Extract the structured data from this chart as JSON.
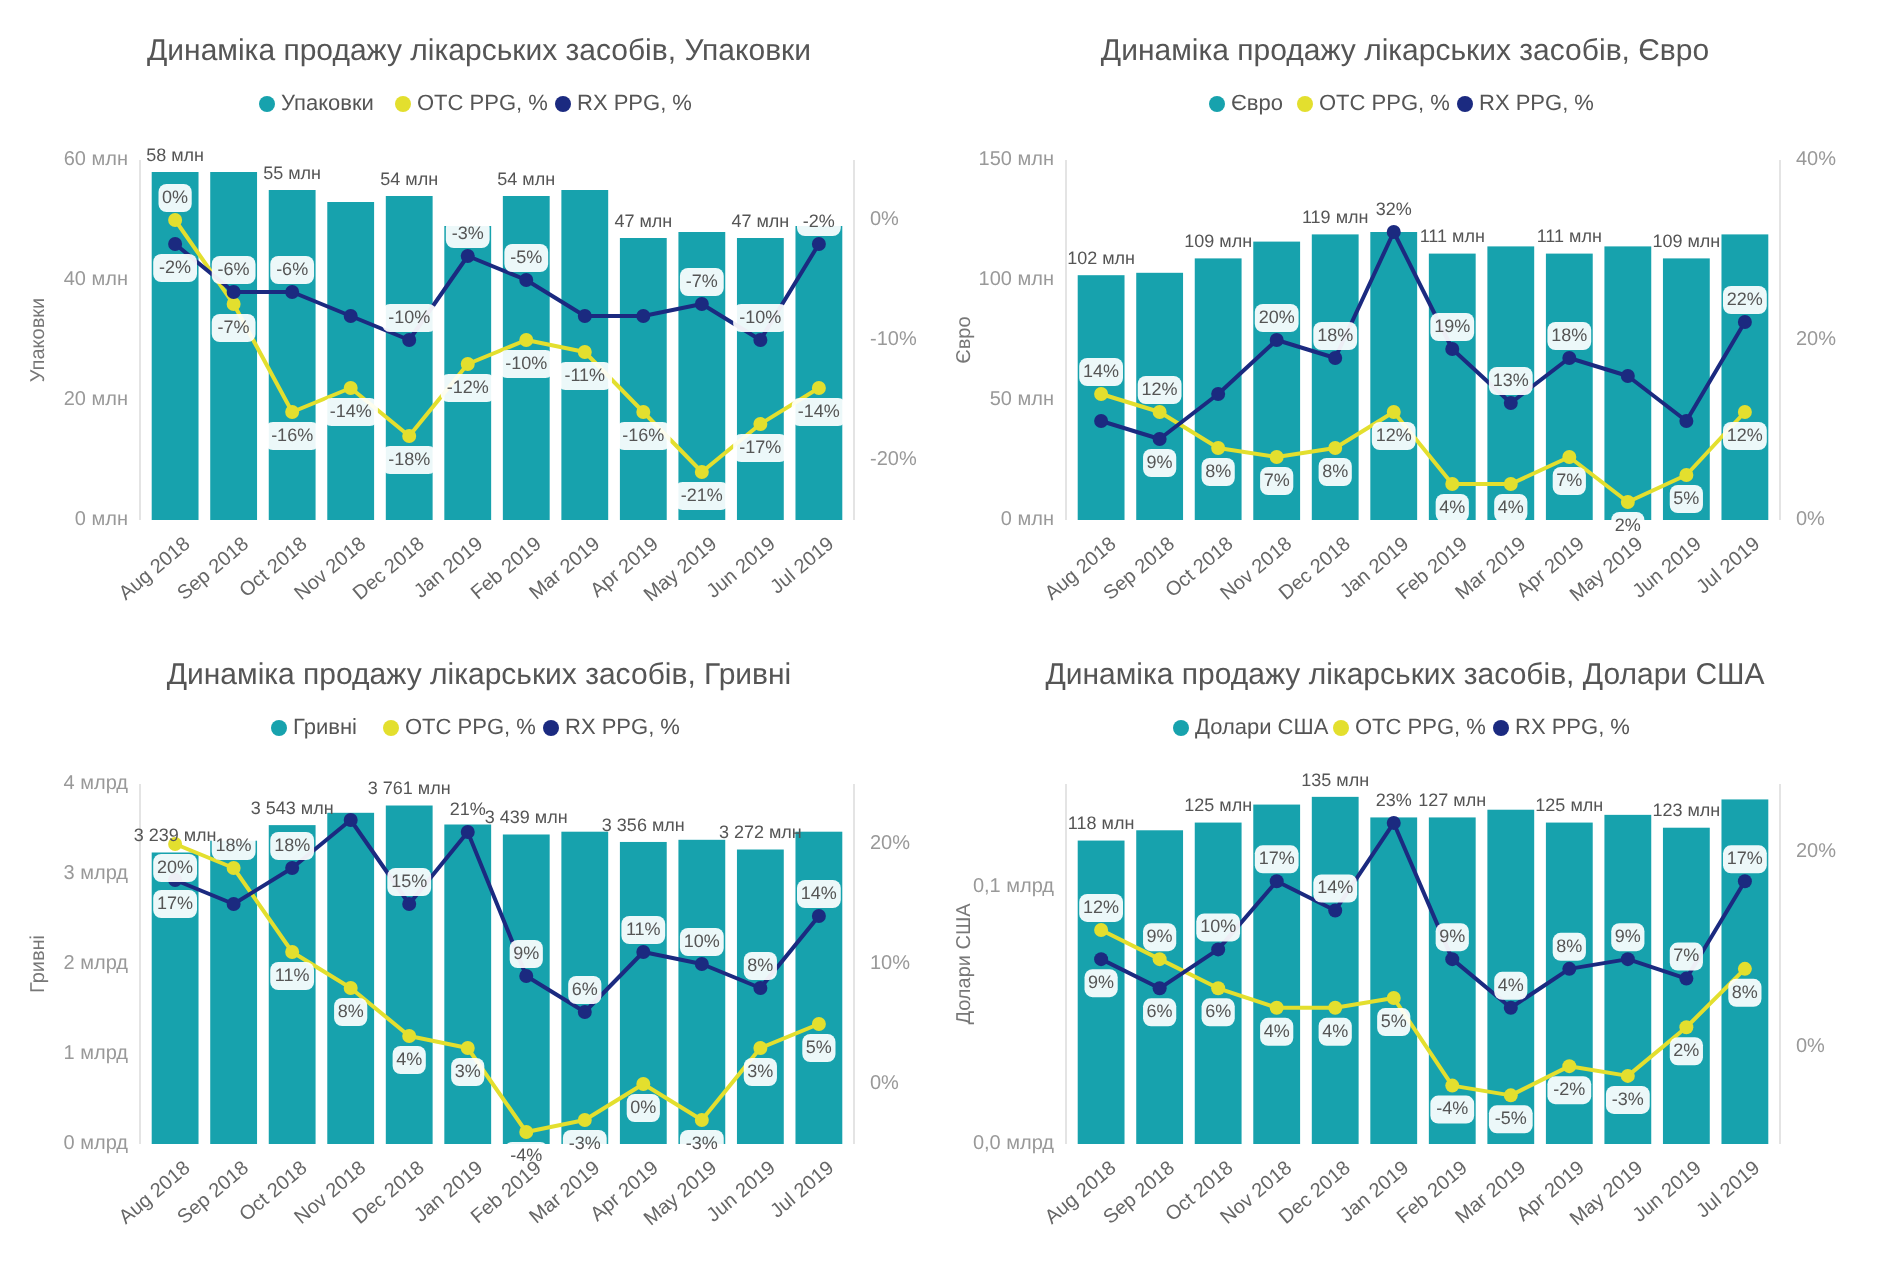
{
  "chart_data": [
    {
      "type": "bar",
      "title": "Динаміка продажу лікарських засобів, Упаковки",
      "ylabel": "Упаковки",
      "legend": "top",
      "marker": "circle",
      "categories": [
        "Aug 2018",
        "Sep 2018",
        "Oct 2018",
        "Nov 2018",
        "Dec 2018",
        "Jan 2019",
        "Feb 2019",
        "Mar 2019",
        "Apr 2019",
        "May 2019",
        "Jun 2019",
        "Jul 2019"
      ],
      "ylim": [
        0,
        60
      ],
      "yticks": [
        {
          "value": 0,
          "label": "0 млн"
        },
        {
          "value": 20,
          "label": "20 млн"
        },
        {
          "value": 40,
          "label": "40 млн"
        },
        {
          "value": 60,
          "label": "60 млн"
        }
      ],
      "y2lim": [
        -25,
        5
      ],
      "y2ticks": [
        {
          "value": -20,
          "label": "-20%"
        },
        {
          "value": -10,
          "label": "-10%"
        },
        {
          "value": 0,
          "label": "0%"
        }
      ],
      "series": [
        {
          "name": "Упаковки",
          "color": "#17a2ad",
          "values": [
            58,
            58,
            55,
            53,
            54,
            49,
            54,
            55,
            47,
            48,
            47,
            49
          ],
          "value_labels": [
            "58 млн",
            null,
            "55 млн",
            null,
            "54 млн",
            null,
            "54 млн",
            null,
            "47 млн",
            null,
            "47 млн",
            null
          ]
        },
        {
          "name": "OTC PPG, %",
          "type": "line",
          "axis": "y2",
          "color": "#e3df2e",
          "values": [
            0,
            -7,
            -16,
            -14,
            -18,
            -12,
            -10,
            -11,
            -16,
            -21,
            -17,
            -14
          ],
          "value_labels": [
            "0%",
            "-7%",
            "-16%",
            "-14%",
            "-18%",
            "-12%",
            "-10%",
            "-11%",
            "-16%",
            "-21%",
            "-17%",
            "-14%"
          ]
        },
        {
          "name": "RX PPG, %",
          "type": "line",
          "axis": "y2",
          "color": "#1b2a80",
          "values": [
            -2,
            -6,
            -6,
            -8,
            -10,
            -3,
            -5,
            -8,
            -8,
            -7,
            -10,
            -2
          ],
          "value_labels": [
            "-2%",
            "-6%",
            "-6%",
            null,
            "-10%",
            "-3%",
            "-5%",
            null,
            null,
            "-7%",
            "-10%",
            "-2%"
          ]
        }
      ]
    },
    {
      "type": "bar",
      "title": "Динаміка продажу лікарських засобів, Євро",
      "ylabel": "Євро",
      "legend": "top",
      "marker": "circle",
      "categories": [
        "Aug 2018",
        "Sep 2018",
        "Oct 2018",
        "Nov 2018",
        "Dec 2018",
        "Jan 2019",
        "Feb 2019",
        "Mar 2019",
        "Apr 2019",
        "May 2019",
        "Jun 2019",
        "Jul 2019"
      ],
      "ylim": [
        0,
        150
      ],
      "yticks": [
        {
          "value": 0,
          "label": "0 млн"
        },
        {
          "value": 50,
          "label": "50 млн"
        },
        {
          "value": 100,
          "label": "100 млн"
        },
        {
          "value": 150,
          "label": "150 млн"
        }
      ],
      "y2lim": [
        0,
        40
      ],
      "y2ticks": [
        {
          "value": 0,
          "label": "0%"
        },
        {
          "value": 20,
          "label": "20%"
        },
        {
          "value": 40,
          "label": "40%"
        }
      ],
      "series": [
        {
          "name": "Євро",
          "color": "#17a2ad",
          "values": [
            102,
            103,
            109,
            116,
            119,
            120,
            111,
            114,
            111,
            114,
            109,
            119
          ],
          "value_labels": [
            "102 млн",
            null,
            "109 млн",
            null,
            "119 млн",
            null,
            "111 млн",
            null,
            "111 млн",
            null,
            "109 млн",
            null
          ]
        },
        {
          "name": "OTC PPG, %",
          "type": "line",
          "axis": "y2",
          "color": "#e3df2e",
          "values": [
            14,
            12,
            8,
            7,
            8,
            12,
            4,
            4,
            7,
            2,
            5,
            12
          ],
          "value_labels": [
            "14%",
            "12%",
            "8%",
            "7%",
            "8%",
            "12%",
            "4%",
            "4%",
            "7%",
            "2%",
            "5%",
            "12%"
          ]
        },
        {
          "name": "RX PPG, %",
          "type": "line",
          "axis": "y2",
          "color": "#1b2a80",
          "values": [
            11,
            9,
            14,
            20,
            18,
            32,
            19,
            13,
            18,
            16,
            11,
            22
          ],
          "value_labels": [
            null,
            "9%",
            null,
            "20%",
            "18%",
            "32%",
            "19%",
            "13%",
            "18%",
            null,
            null,
            "22%"
          ]
        }
      ]
    },
    {
      "type": "bar",
      "title": "Динаміка продажу лікарських засобів, Гривні",
      "ylabel": "Гривні",
      "legend": "top",
      "marker": "circle",
      "categories": [
        "Aug 2018",
        "Sep 2018",
        "Oct 2018",
        "Nov 2018",
        "Dec 2018",
        "Jan 2019",
        "Feb 2019",
        "Mar 2019",
        "Apr 2019",
        "May 2019",
        "Jun 2019",
        "Jul 2019"
      ],
      "ylim": [
        0,
        4
      ],
      "yticks": [
        {
          "value": 0,
          "label": "0 млрд"
        },
        {
          "value": 1,
          "label": "1 млрд"
        },
        {
          "value": 2,
          "label": "2 млрд"
        },
        {
          "value": 3,
          "label": "3 млрд"
        },
        {
          "value": 4,
          "label": "4 млрд"
        }
      ],
      "annotations": [
        {
          "text": "3 239 млн",
          "x": "Aug 2018",
          "y": 3.239
        },
        {
          "text": "3 543 млн",
          "x": "Oct 2018",
          "y": 3.543
        },
        {
          "text": "3 761 млн",
          "x": "Dec 2018",
          "y": 3.761
        },
        {
          "text": "3 439 млн",
          "x": "Feb 2019",
          "y": 3.439
        },
        {
          "text": "3 356 млн",
          "x": "Apr 2019",
          "y": 3.356
        },
        {
          "text": "3 272 млн",
          "x": "Jun 2019",
          "y": 3.272
        }
      ],
      "y2lim": [
        -5,
        25
      ],
      "y2ticks": [
        {
          "value": 0,
          "label": "0%"
        },
        {
          "value": 10,
          "label": "10%"
        },
        {
          "value": 20,
          "label": "20%"
        }
      ],
      "series": [
        {
          "name": "Гривні",
          "color": "#17a2ad",
          "values": [
            3.239,
            3.37,
            3.543,
            3.68,
            3.761,
            3.55,
            3.439,
            3.47,
            3.356,
            3.38,
            3.272,
            3.47
          ]
        },
        {
          "name": "OTC PPG, %",
          "type": "line",
          "axis": "y2",
          "color": "#e3df2e",
          "values": [
            20,
            18,
            11,
            8,
            4,
            3,
            -4,
            -3,
            0,
            -3,
            3,
            5
          ],
          "value_labels": [
            "20%",
            "18%",
            "11%",
            "8%",
            "4%",
            "3%",
            "-4%",
            "-3%",
            "0%",
            "-3%",
            "3%",
            "5%"
          ]
        },
        {
          "name": "RX PPG, %",
          "type": "line",
          "axis": "y2",
          "color": "#1b2a80",
          "values": [
            17,
            15,
            18,
            22,
            15,
            21,
            9,
            6,
            11,
            10,
            8,
            14
          ],
          "value_labels": [
            "17%",
            null,
            "18%",
            null,
            "15%",
            "21%",
            "9%",
            "6%",
            "11%",
            "10%",
            "8%",
            "14%"
          ]
        }
      ]
    },
    {
      "type": "bar",
      "title": "Динаміка продажу лікарських засобів, Долари США",
      "ylabel": "Долари США",
      "legend": "top",
      "marker": "circle",
      "categories": [
        "Aug 2018",
        "Sep 2018",
        "Oct 2018",
        "Nov 2018",
        "Dec 2018",
        "Jan 2019",
        "Feb 2019",
        "Mar 2019",
        "Apr 2019",
        "May 2019",
        "Jun 2019",
        "Jul 2019"
      ],
      "ylim": [
        0,
        0.14
      ],
      "yticks": [
        {
          "value": 0,
          "label": "0,0 млрд"
        },
        {
          "value": 0.1,
          "label": "0,1 млрд"
        }
      ],
      "annotations": [
        {
          "text": "118 млн",
          "x": "Aug 2018",
          "y": 0.118
        },
        {
          "text": "125 млн",
          "x": "Oct 2018",
          "y": 0.125
        },
        {
          "text": "135 млн",
          "x": "Dec 2018",
          "y": 0.135
        },
        {
          "text": "127 млн",
          "x": "Feb 2019",
          "y": 0.127
        },
        {
          "text": "125 млн",
          "x": "Apr 2019",
          "y": 0.125
        },
        {
          "text": "123 млн",
          "x": "Jun 2019",
          "y": 0.123
        }
      ],
      "y2lim": [
        -10,
        27
      ],
      "y2ticks": [
        {
          "value": 0,
          "label": "0%"
        },
        {
          "value": 20,
          "label": "20%"
        }
      ],
      "series": [
        {
          "name": "Долари США",
          "color": "#17a2ad",
          "values": [
            0.118,
            0.122,
            0.125,
            0.132,
            0.135,
            0.127,
            0.127,
            0.13,
            0.125,
            0.128,
            0.123,
            0.134
          ]
        },
        {
          "name": "OTC PPG, %",
          "type": "line",
          "axis": "y2",
          "color": "#e3df2e",
          "values": [
            12,
            9,
            6,
            4,
            4,
            5,
            -4,
            -5,
            -2,
            -3,
            2,
            8
          ],
          "value_labels": [
            "12%",
            "9%",
            "6%",
            "4%",
            "4%",
            "5%",
            "-4%",
            "-5%",
            "-2%",
            "-3%",
            "2%",
            "8%"
          ]
        },
        {
          "name": "RX PPG, %",
          "type": "line",
          "axis": "y2",
          "color": "#1b2a80",
          "values": [
            9,
            6,
            10,
            17,
            14,
            23,
            9,
            4,
            8,
            9,
            7,
            17
          ],
          "value_labels": [
            "9%",
            "6%",
            "10%",
            "17%",
            "14%",
            "23%",
            "9%",
            "4%",
            "8%",
            "9%",
            "7%",
            "17%"
          ]
        }
      ]
    }
  ]
}
